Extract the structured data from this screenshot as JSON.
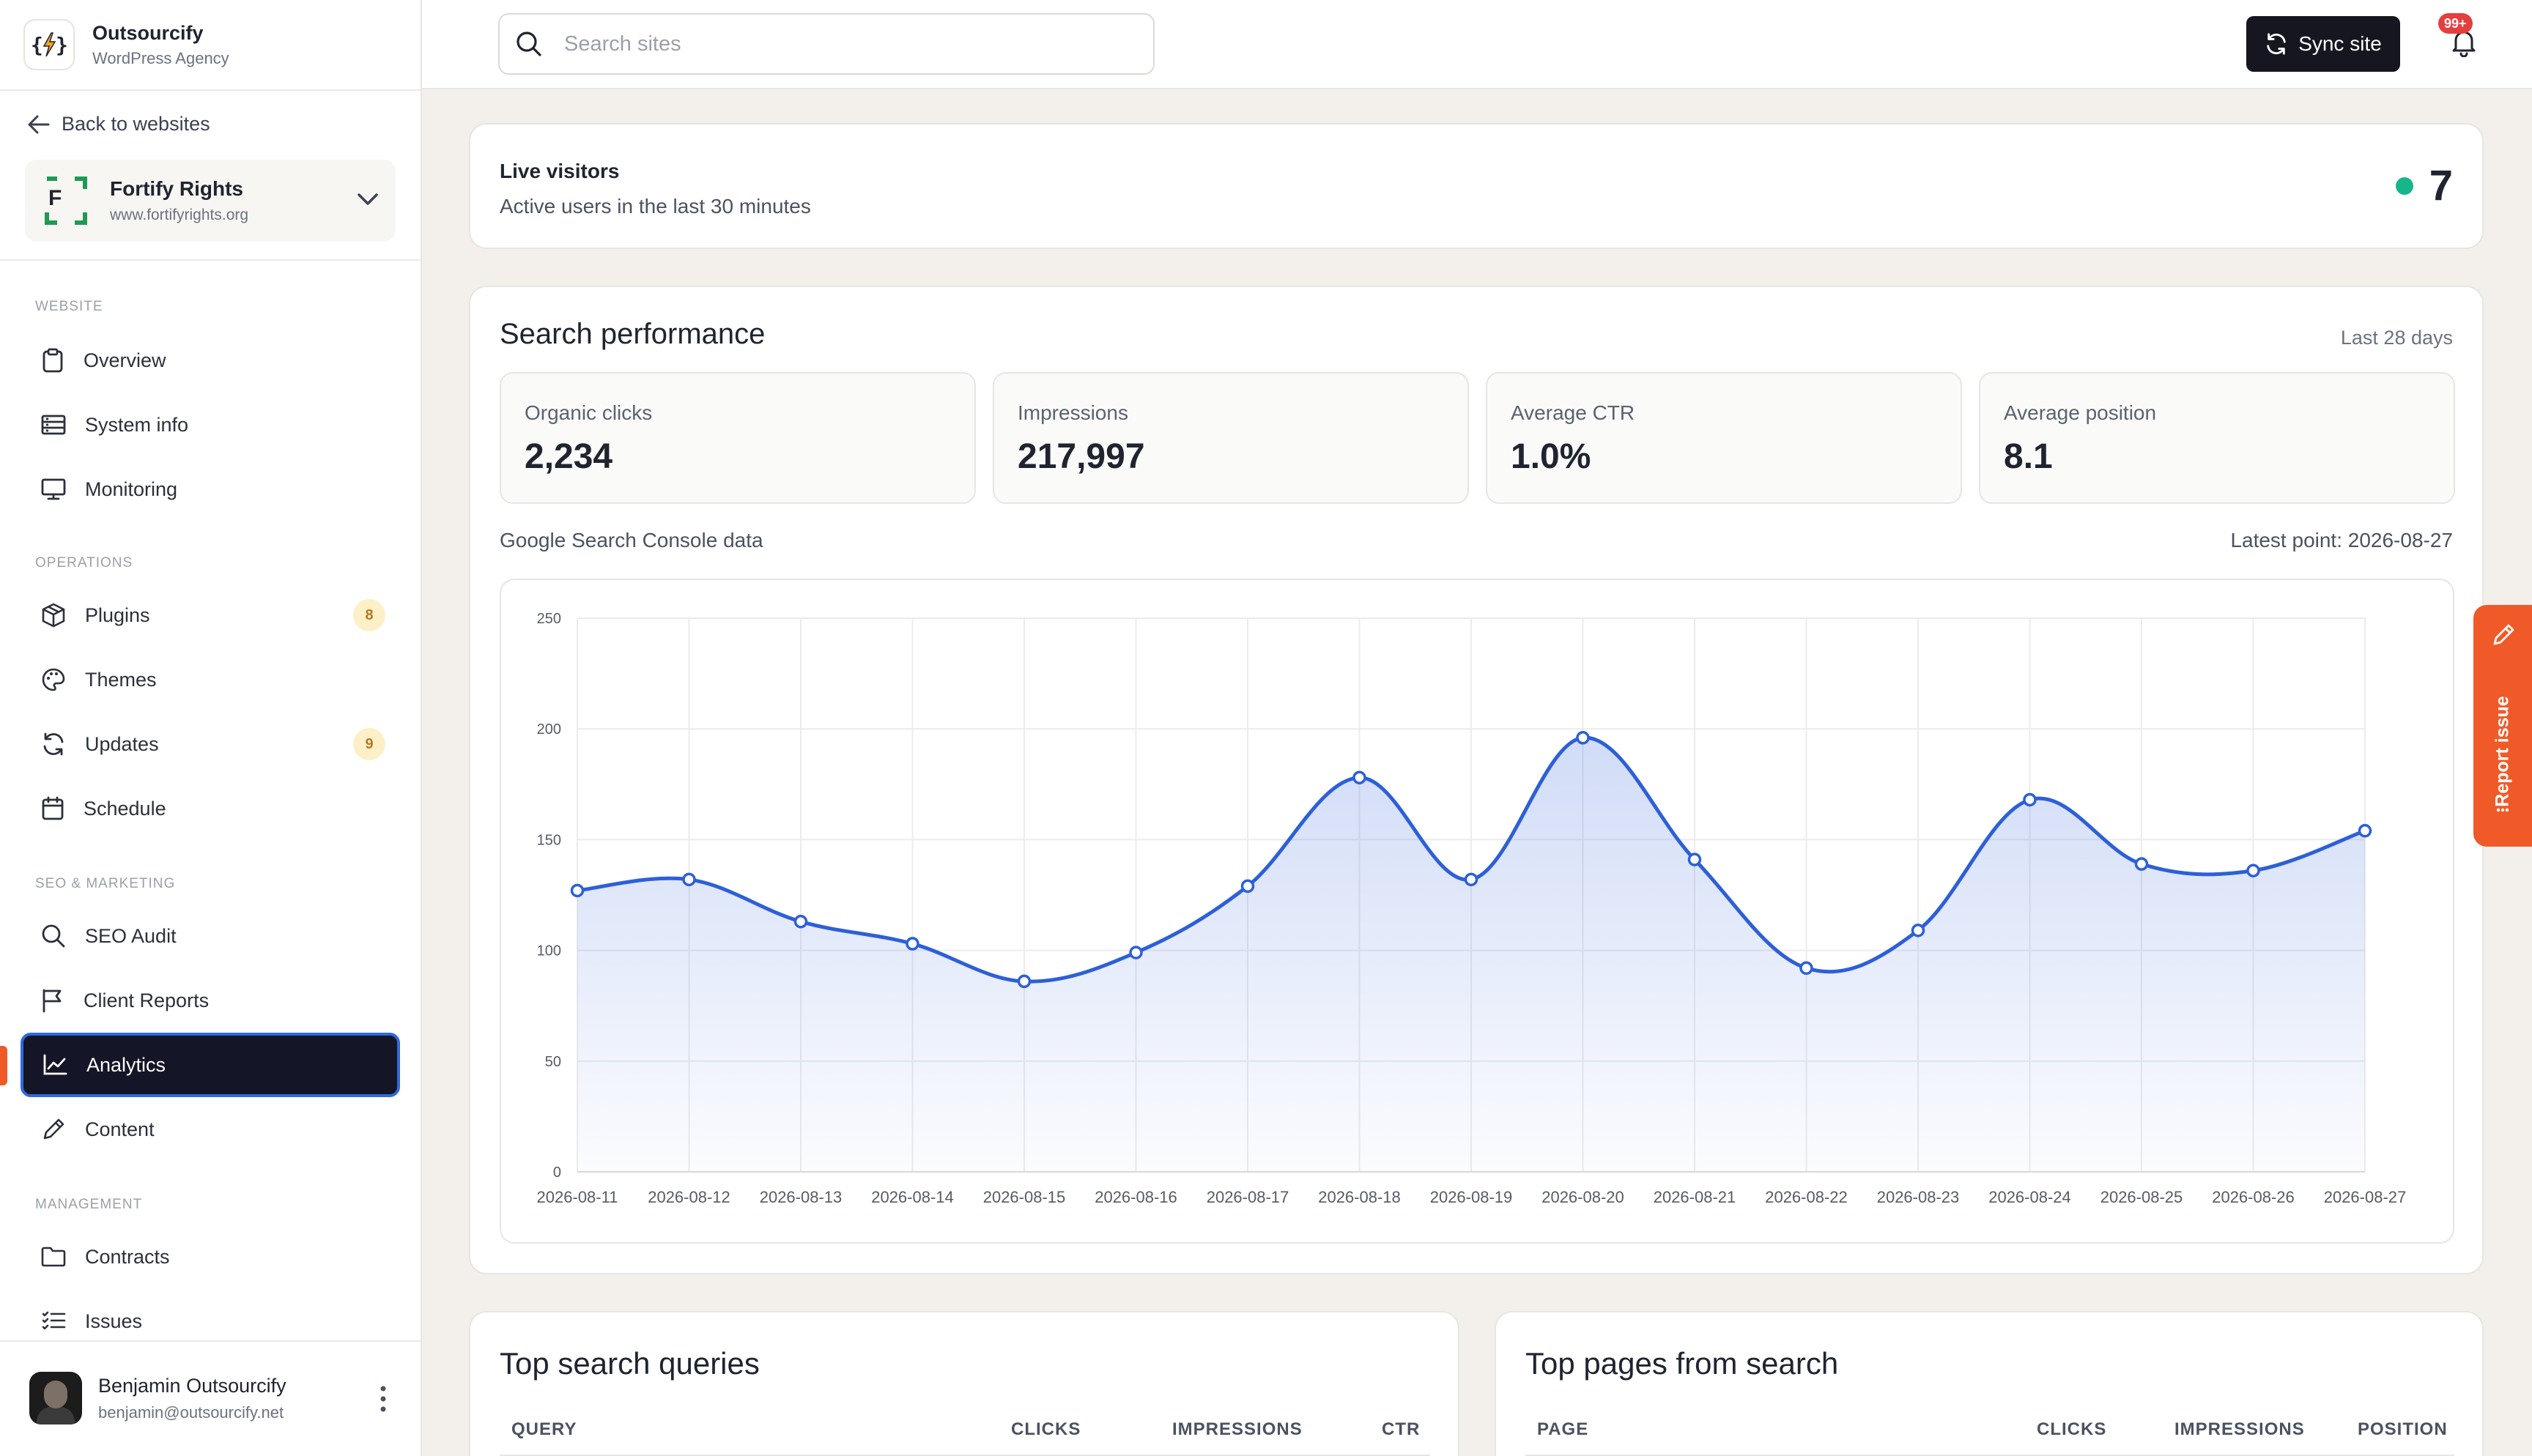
{
  "brand": {
    "name": "Outsourcify",
    "subtitle": "WordPress Agency",
    "logo_text": "{⚡}"
  },
  "sidebar": {
    "back_label": "Back to websites",
    "site": {
      "name": "Fortify Rights",
      "url": "www.fortifyrights.org",
      "logo_letter": "F"
    },
    "sections": {
      "website": "WEBSITE",
      "operations": "OPERATIONS",
      "seo": "SEO & MARKETING",
      "management": "MANAGEMENT"
    },
    "items": {
      "overview": "Overview",
      "system_info": "System info",
      "monitoring": "Monitoring",
      "plugins": {
        "label": "Plugins",
        "badge": "8"
      },
      "themes": "Themes",
      "updates": {
        "label": "Updates",
        "badge": "9"
      },
      "schedule": "Schedule",
      "seo_audit": "SEO Audit",
      "client_reports": "Client Reports",
      "analytics": "Analytics",
      "content": "Content",
      "contracts": "Contracts",
      "issues": "Issues"
    },
    "active_item": "Analytics",
    "user": {
      "name": "Benjamin Outsourcify",
      "email": "benjamin@outsourcify.net"
    }
  },
  "topbar": {
    "search_placeholder": "Search sites",
    "search_value": "",
    "sync_label": "Sync site",
    "notifications_badge": "99+"
  },
  "live": {
    "title": "Live visitors",
    "subtitle": "Active users in the last 30 minutes",
    "count": "7",
    "status_color": "#16b68a"
  },
  "performance": {
    "title": "Search performance",
    "range": "Last 28 days",
    "metrics": [
      {
        "label": "Organic clicks",
        "value": "2,234"
      },
      {
        "label": "Impressions",
        "value": "217,997"
      },
      {
        "label": "Average CTR",
        "value": "1.0%"
      },
      {
        "label": "Average position",
        "value": "8.1"
      }
    ],
    "source_label": "Google Search Console data",
    "latest_label": "Latest point: 2026-08-27"
  },
  "chart_data": {
    "type": "area",
    "title": "",
    "xlabel": "",
    "ylabel": "",
    "ylim": [
      0,
      250
    ],
    "yticks": [
      0,
      50,
      100,
      150,
      200,
      250
    ],
    "grid": true,
    "legend": "none",
    "color": "#2d5fd8",
    "categories": [
      "2026-08-11",
      "2026-08-12",
      "2026-08-13",
      "2026-08-14",
      "2026-08-15",
      "2026-08-16",
      "2026-08-17",
      "2026-08-18",
      "2026-08-19",
      "2026-08-20",
      "2026-08-21",
      "2026-08-22",
      "2026-08-23",
      "2026-08-24",
      "2026-08-25",
      "2026-08-26",
      "2026-08-27"
    ],
    "series": [
      {
        "values": [
          127,
          132,
          113,
          103,
          86,
          99,
          129,
          178,
          132,
          196,
          141,
          92,
          109,
          168,
          139,
          136,
          154
        ]
      }
    ]
  },
  "queries_table": {
    "title": "Top search queries",
    "columns": [
      "QUERY",
      "CLICKS",
      "IMPRESSIONS",
      "CTR"
    ]
  },
  "pages_table": {
    "title": "Top pages from search",
    "columns": [
      "PAGE",
      "CLICKS",
      "IMPRESSIONS",
      "POSITION"
    ]
  },
  "report_tab": {
    "label": "Report issue"
  }
}
